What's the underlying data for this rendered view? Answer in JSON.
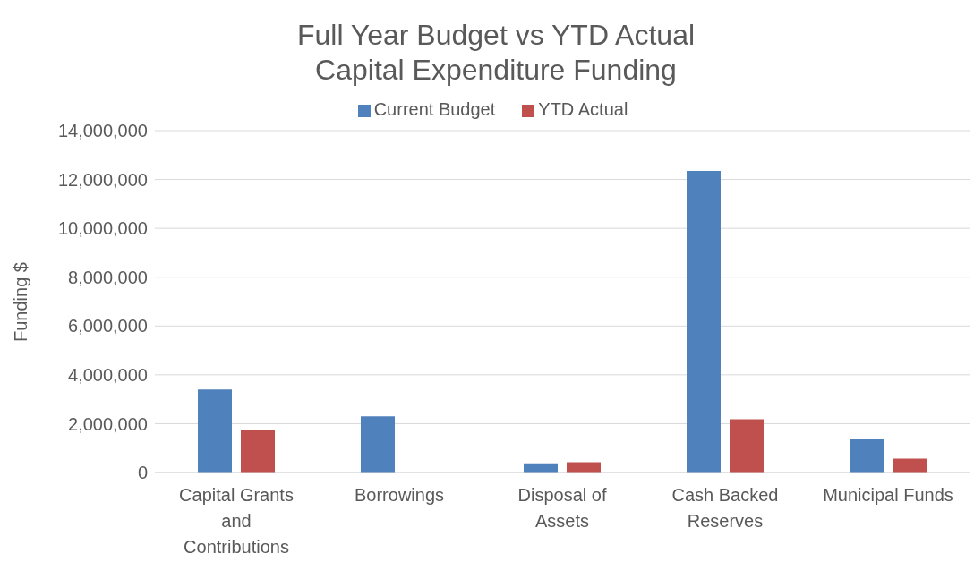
{
  "chart_data": {
    "type": "bar",
    "title": "Full Year Budget vs YTD Actual\nCapital Expenditure Funding",
    "ylabel": "Funding $",
    "categories": [
      "Capital Grants and Contributions",
      "Borrowings",
      "Disposal of Assets",
      "Cash Backed Reserves",
      "Municipal Funds"
    ],
    "series": [
      {
        "name": "Current Budget",
        "color": "#4f81bd",
        "values": [
          3400000,
          2300000,
          380000,
          12350000,
          1380000
        ]
      },
      {
        "name": "YTD Actual",
        "color": "#c0504d",
        "values": [
          1760000,
          0,
          420000,
          2180000,
          570000
        ]
      }
    ],
    "ylim": [
      0,
      14000000
    ],
    "yticks": [
      0,
      {
        "value": 2000000,
        "label": "2,000,000"
      },
      {
        "value": 4000000,
        "label": "4,000,000"
      },
      {
        "value": 6000000,
        "label": "6,000,000"
      },
      {
        "value": 8000000,
        "label": "8,000,000"
      },
      {
        "value": 10000000,
        "label": "10,000,000"
      },
      {
        "value": 12000000,
        "label": "12,000,000"
      },
      {
        "value": 14000000,
        "label": "14,000,000"
      }
    ],
    "grid": "y",
    "legend": "top"
  }
}
